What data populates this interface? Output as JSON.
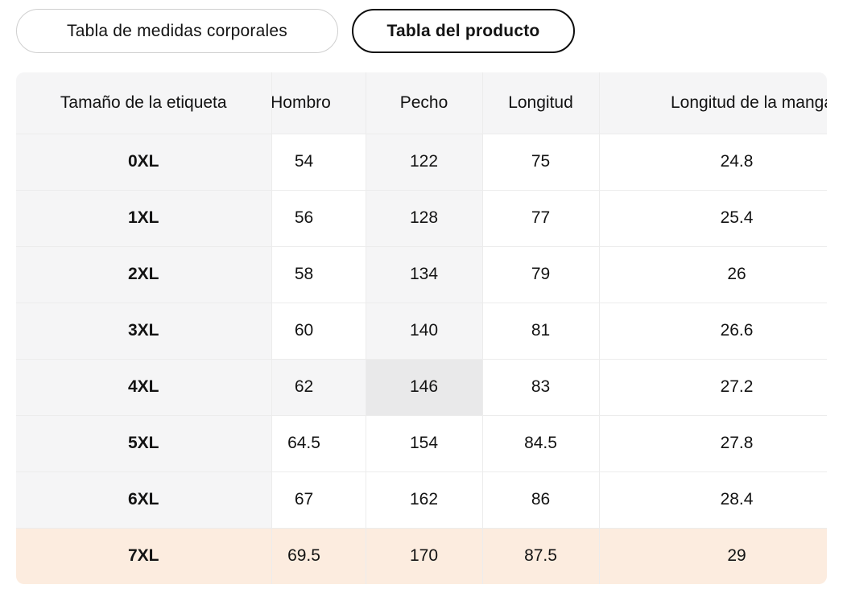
{
  "tabs": {
    "body_measurements": "Tabla de medidas corporales",
    "product": "Tabla del producto",
    "selected_tab": "Tabla del producto"
  },
  "table": {
    "headers": {
      "size": "Tamaño de la etiqueta",
      "shoulder": "Hombro",
      "chest": "Pecho",
      "length": "Longitud",
      "sleeve": "Longitud de la manga"
    },
    "rows": [
      {
        "size": "0XL",
        "shoulder": "54",
        "chest": "122",
        "length": "75",
        "sleeve": "24.8"
      },
      {
        "size": "1XL",
        "shoulder": "56",
        "chest": "128",
        "length": "77",
        "sleeve": "25.4"
      },
      {
        "size": "2XL",
        "shoulder": "58",
        "chest": "134",
        "length": "79",
        "sleeve": "26"
      },
      {
        "size": "3XL",
        "shoulder": "60",
        "chest": "140",
        "length": "81",
        "sleeve": "26.6"
      },
      {
        "size": "4XL",
        "shoulder": "62",
        "chest": "146",
        "length": "83",
        "sleeve": "27.2"
      },
      {
        "size": "5XL",
        "shoulder": "64.5",
        "chest": "154",
        "length": "84.5",
        "sleeve": "27.8"
      },
      {
        "size": "6XL",
        "shoulder": "67",
        "chest": "162",
        "length": "86",
        "sleeve": "28.4"
      },
      {
        "size": "7XL",
        "shoulder": "69.5",
        "chest": "170",
        "length": "87.5",
        "sleeve": "29"
      }
    ],
    "highlight": {
      "selected_size_row": "7XL",
      "hovered_cell": {
        "row": "4XL",
        "column": "Pecho"
      }
    }
  },
  "colors": {
    "header_bg": "#f5f5f6",
    "label_column_bg": "#f5f5f6",
    "hover_soft_bg": "#f5f5f6",
    "hover_strong_bg": "#e9e9ea",
    "selected_row_bg": "#fcecdf",
    "divider": "#ececec",
    "text": "#131313",
    "tab_border_selected": "#0e0e0e",
    "tab_border_unselected": "#cfcfcf"
  }
}
